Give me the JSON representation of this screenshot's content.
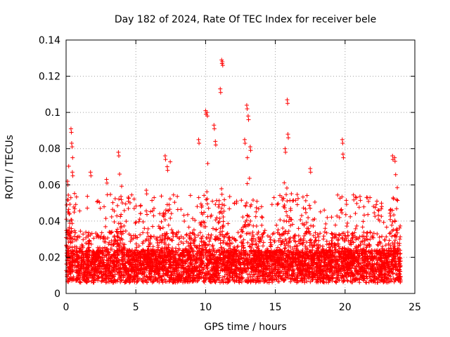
{
  "chart_data": {
    "type": "scatter",
    "title": "Day 182 of 2024, Rate Of TEC Index for receiver bele",
    "xlabel": "GPS time / hours",
    "ylabel": "ROTI / TECUs",
    "xlim": [
      0,
      25
    ],
    "ylim": [
      0,
      0.14
    ],
    "x_ticks": [
      0,
      5,
      10,
      15,
      20,
      25
    ],
    "x_tick_labels": [
      "0",
      "5",
      "10",
      "15",
      "20",
      "25"
    ],
    "y_ticks": [
      0,
      0.02,
      0.04,
      0.06,
      0.08,
      0.1,
      0.12,
      0.14
    ],
    "y_tick_labels": [
      "0",
      "0.02",
      "0.04",
      "0.06",
      "0.08",
      "0.1",
      "0.12",
      "0.14"
    ],
    "grid": true,
    "marker": "+",
    "color": "#ff0000",
    "series": [
      {
        "name": "ROTI",
        "summary": "dense band of points between ~0.005 and ~0.04 TECU across 0-24 h with scattered spikes",
        "peaks": [
          {
            "x": 0.1,
            "y": 0.062
          },
          {
            "x": 0.35,
            "y": 0.091
          },
          {
            "x": 0.4,
            "y": 0.083
          },
          {
            "x": 0.45,
            "y": 0.067
          },
          {
            "x": 1.75,
            "y": 0.067
          },
          {
            "x": 2.9,
            "y": 0.063
          },
          {
            "x": 3.75,
            "y": 0.078
          },
          {
            "x": 5.75,
            "y": 0.057
          },
          {
            "x": 7.1,
            "y": 0.076
          },
          {
            "x": 7.25,
            "y": 0.07
          },
          {
            "x": 9.5,
            "y": 0.085
          },
          {
            "x": 10.0,
            "y": 0.101
          },
          {
            "x": 10.1,
            "y": 0.1
          },
          {
            "x": 10.6,
            "y": 0.093
          },
          {
            "x": 10.7,
            "y": 0.084
          },
          {
            "x": 11.05,
            "y": 0.113
          },
          {
            "x": 11.15,
            "y": 0.129
          },
          {
            "x": 11.2,
            "y": 0.128
          },
          {
            "x": 12.8,
            "y": 0.085
          },
          {
            "x": 12.95,
            "y": 0.104
          },
          {
            "x": 13.05,
            "y": 0.098
          },
          {
            "x": 13.2,
            "y": 0.081
          },
          {
            "x": 15.7,
            "y": 0.08
          },
          {
            "x": 15.85,
            "y": 0.107
          },
          {
            "x": 15.9,
            "y": 0.088
          },
          {
            "x": 17.5,
            "y": 0.069
          },
          {
            "x": 19.8,
            "y": 0.085
          },
          {
            "x": 19.85,
            "y": 0.077
          },
          {
            "x": 23.4,
            "y": 0.076
          },
          {
            "x": 23.55,
            "y": 0.075
          }
        ]
      }
    ]
  }
}
